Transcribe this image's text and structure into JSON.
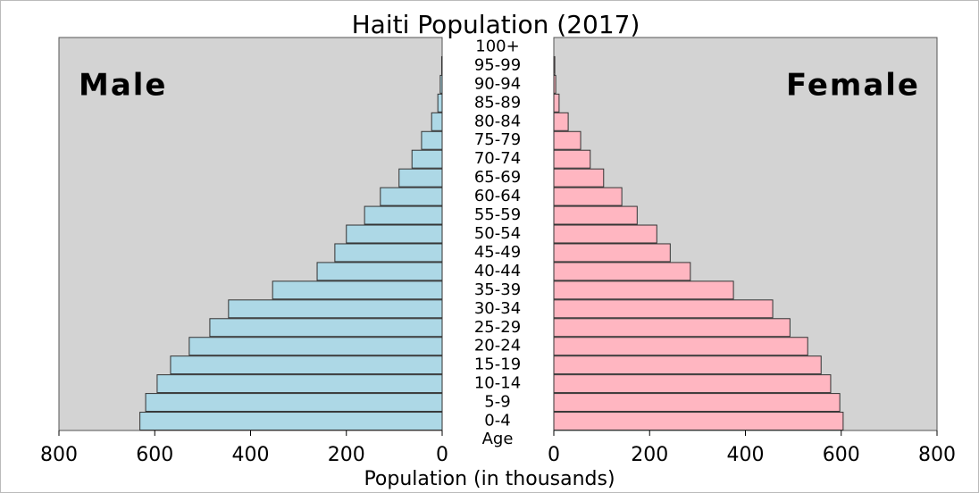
{
  "chart_data": {
    "type": "pyramid",
    "title": "Haiti Population (2017)",
    "xlabel": "Population (in thousands)",
    "category_label": "Age",
    "categories": [
      "0-4",
      "5-9",
      "10-14",
      "15-19",
      "20-24",
      "25-29",
      "30-34",
      "35-39",
      "40-44",
      "45-49",
      "50-54",
      "55-59",
      "60-64",
      "65-69",
      "70-74",
      "75-79",
      "80-84",
      "85-89",
      "90-94",
      "95-99",
      "100+"
    ],
    "series": [
      {
        "name": "Male",
        "color": "#add8e6",
        "values": [
          631,
          619,
          595,
          567,
          528,
          485,
          446,
          354,
          261,
          224,
          200,
          162,
          129,
          90,
          63,
          43,
          22,
          9,
          4,
          1,
          0
        ]
      },
      {
        "name": "Female",
        "color": "#ffb6c1",
        "values": [
          604,
          597,
          578,
          558,
          530,
          493,
          457,
          375,
          285,
          243,
          215,
          174,
          142,
          104,
          76,
          56,
          30,
          11,
          4,
          2,
          0
        ]
      }
    ],
    "xlim": [
      0,
      800
    ],
    "xticks": [
      0,
      200,
      400,
      600,
      800
    ],
    "panel_color": "#d3d3d3"
  }
}
